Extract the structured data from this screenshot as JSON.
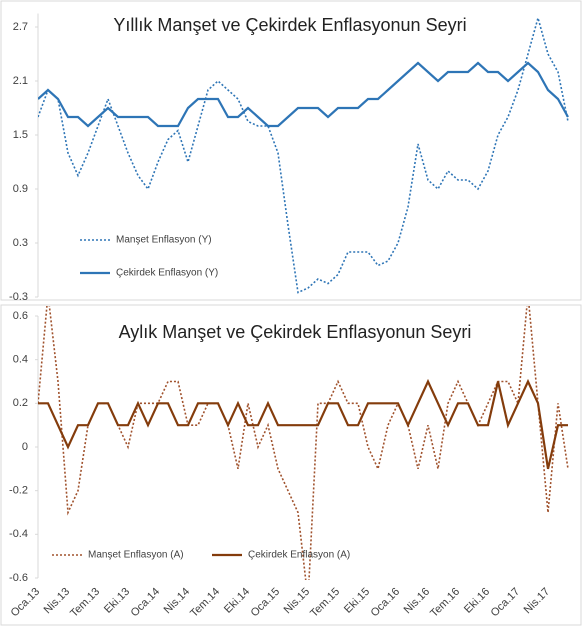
{
  "chart_data": [
    {
      "type": "line",
      "title": "Yıllık Manşet ve Çekirdek Enflasyonun Seyri",
      "ylim": [
        -0.3,
        2.85
      ],
      "yticks": [
        -0.3,
        0.3,
        0.9,
        1.5,
        2.1,
        2.7
      ],
      "grid": false,
      "legend": "lower left",
      "series": [
        {
          "name": "Manşet Enflasyon (Y)",
          "color": "#2e75b6",
          "style": "dotted",
          "values": [
            1.7,
            2.0,
            1.9,
            1.3,
            1.05,
            1.3,
            1.6,
            1.9,
            1.6,
            1.3,
            1.05,
            0.9,
            1.2,
            1.45,
            1.55,
            1.2,
            1.6,
            2.0,
            2.1,
            2.0,
            1.9,
            1.65,
            1.6,
            1.6,
            1.3,
            0.5,
            -0.25,
            -0.2,
            -0.1,
            -0.15,
            -0.05,
            0.2,
            0.2,
            0.2,
            0.05,
            0.1,
            0.3,
            0.7,
            1.4,
            1.0,
            0.9,
            1.1,
            1.0,
            1.0,
            0.9,
            1.1,
            1.5,
            1.7,
            2.0,
            2.4,
            2.8,
            2.4,
            2.2,
            1.65
          ]
        },
        {
          "name": "Çekirdek Enflasyon (Y)",
          "color": "#2e75b6",
          "style": "solid",
          "values": [
            1.9,
            2.0,
            1.9,
            1.7,
            1.7,
            1.6,
            1.7,
            1.8,
            1.7,
            1.7,
            1.7,
            1.7,
            1.6,
            1.6,
            1.6,
            1.8,
            1.9,
            1.9,
            1.9,
            1.7,
            1.7,
            1.8,
            1.7,
            1.6,
            1.6,
            1.7,
            1.8,
            1.8,
            1.8,
            1.7,
            1.8,
            1.8,
            1.8,
            1.9,
            1.9,
            2.0,
            2.1,
            2.2,
            2.3,
            2.2,
            2.1,
            2.2,
            2.2,
            2.2,
            2.3,
            2.2,
            2.2,
            2.1,
            2.2,
            2.3,
            2.2,
            2.0,
            1.9,
            1.7
          ]
        }
      ]
    },
    {
      "type": "line",
      "title": "Aylık Manşet ve Çekirdek Enflasyonun Seyri",
      "categories": [
        "Oca.13",
        null,
        null,
        "Nis.13",
        null,
        null,
        "Tem.13",
        null,
        null,
        "Eki.13",
        null,
        null,
        "Oca.14",
        null,
        null,
        "Nis.14",
        null,
        null,
        "Tem.14",
        null,
        null,
        "Eki.14",
        null,
        null,
        "Oca.15",
        null,
        null,
        "Nis.15",
        null,
        null,
        "Tem.15",
        null,
        null,
        "Eki.15",
        null,
        null,
        "Oca.16",
        null,
        null,
        "Nis.16",
        null,
        null,
        "Tem.16",
        null,
        null,
        "Eki.16",
        null,
        null,
        "Oca.17",
        null,
        null,
        "Nis.17",
        null,
        null
      ],
      "ylim": [
        -0.6,
        0.6
      ],
      "yticks": [
        -0.6,
        -0.4,
        -0.2,
        0.0,
        0.2,
        0.4,
        0.6
      ],
      "grid": false,
      "legend": "lower center",
      "series": [
        {
          "name": "Manşet Enflasyon (A)",
          "color": "#a0522d",
          "style": "dotted",
          "values": [
            0.2,
            0.7,
            0.3,
            -0.3,
            -0.2,
            0.1,
            0.2,
            0.2,
            0.1,
            0.0,
            0.2,
            0.2,
            0.2,
            0.3,
            0.3,
            0.1,
            0.1,
            0.2,
            0.2,
            0.1,
            -0.1,
            0.2,
            0.0,
            0.1,
            -0.1,
            -0.2,
            -0.3,
            -0.7,
            0.2,
            0.2,
            0.3,
            0.2,
            0.2,
            0.0,
            -0.1,
            0.1,
            0.2,
            0.1,
            -0.1,
            0.1,
            -0.1,
            0.2,
            0.3,
            0.2,
            0.1,
            0.2,
            0.3,
            0.3,
            0.2,
            0.7,
            0.2,
            -0.3,
            0.2,
            -0.1
          ]
        },
        {
          "name": "Çekirdek Enflasyon (A)",
          "color": "#843c0c",
          "style": "solid",
          "values": [
            0.2,
            0.2,
            0.1,
            0.0,
            0.1,
            0.1,
            0.2,
            0.2,
            0.1,
            0.1,
            0.2,
            0.1,
            0.2,
            0.2,
            0.1,
            0.1,
            0.2,
            0.2,
            0.2,
            0.1,
            0.2,
            0.1,
            0.1,
            0.2,
            0.1,
            0.1,
            0.1,
            0.1,
            0.1,
            0.2,
            0.2,
            0.1,
            0.1,
            0.2,
            0.2,
            0.2,
            0.2,
            0.1,
            0.2,
            0.3,
            0.2,
            0.1,
            0.2,
            0.2,
            0.1,
            0.1,
            0.3,
            0.1,
            0.2,
            0.3,
            0.2,
            -0.1,
            0.1,
            0.1
          ]
        }
      ]
    }
  ]
}
